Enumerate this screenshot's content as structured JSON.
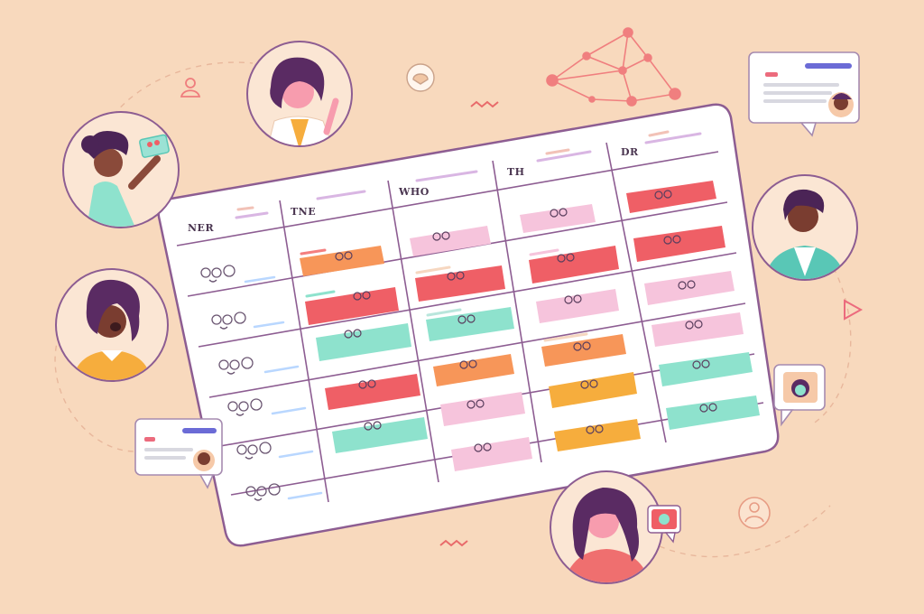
{
  "schedule": {
    "columns": [
      {
        "header": "NER"
      },
      {
        "header": "TNE"
      },
      {
        "header": "WHO"
      },
      {
        "header": "TH"
      },
      {
        "header": "DR"
      }
    ]
  },
  "colors": {
    "background": "#f8d9bd",
    "red": "#ef5f66",
    "orange": "#f79659",
    "pink": "#f6c4dc",
    "mint": "#8ee2cd",
    "amber": "#f6ad3d",
    "purple_line": "#8d5d92",
    "teal": "#59c7b6",
    "accent_blue": "#6b6bd6",
    "coral_accent": "#ec6b7d"
  },
  "icons": [
    "user-icon",
    "chat-bubble-icon",
    "network-graph-icon",
    "zigzag-icon",
    "play-triangle-icon"
  ]
}
